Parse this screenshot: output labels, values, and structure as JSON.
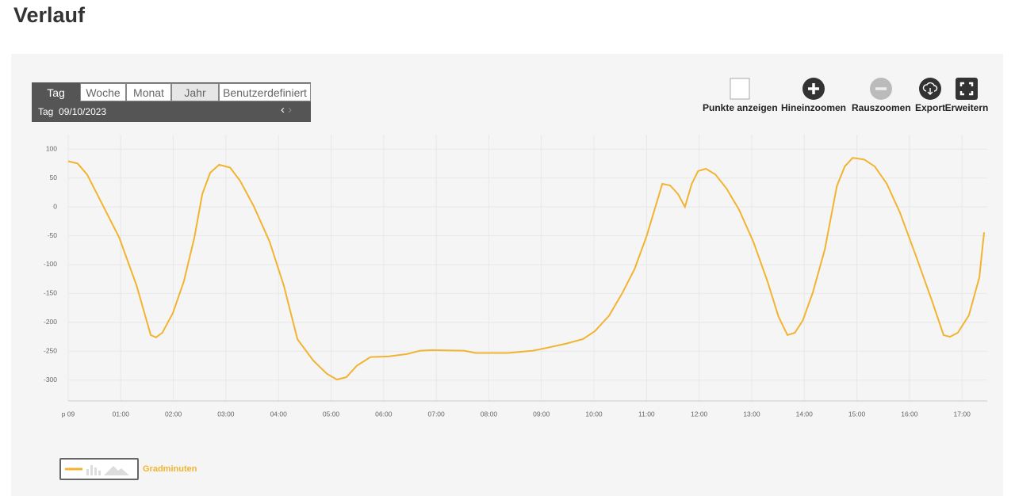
{
  "header": {
    "title": "Verlauf"
  },
  "tabs": {
    "items": [
      "Tag",
      "Woche",
      "Monat",
      "Jahr",
      "Benutzerdefiniert"
    ],
    "active": 0,
    "dimmed": 3
  },
  "period": {
    "label": "Tag",
    "date": "09/10/2023"
  },
  "toolbar": [
    "Punkte anzeigen",
    "Hineinzoomen",
    "Rauszoomen",
    "Export",
    "Erweitern"
  ],
  "chart_data": {
    "type": "line",
    "grid": true,
    "x": [
      0,
      0.18,
      0.36,
      0.59,
      0.97,
      1.3,
      1.57,
      1.67,
      1.79,
      1.99,
      2.2,
      2.4,
      2.55,
      2.7,
      2.87,
      3.08,
      3.27,
      3.53,
      3.83,
      4.1,
      4.36,
      4.66,
      4.92,
      5.11,
      5.29,
      5.49,
      5.75,
      6.09,
      6.43,
      6.7,
      6.92,
      7.53,
      7.75,
      8.36,
      8.84,
      9.11,
      9.46,
      9.79,
      10.02,
      10.29,
      10.54,
      10.77,
      11,
      11.3,
      11.45,
      11.6,
      11.73,
      11.86,
      11.98,
      12.13,
      12.31,
      12.52,
      12.76,
      13.03,
      13.3,
      13.51,
      13.68,
      13.82,
      13.97,
      14.16,
      14.39,
      14.62,
      14.77,
      14.92,
      15.14,
      15.34,
      15.57,
      15.82,
      16.12,
      16.43,
      16.65,
      16.77,
      16.92,
      17.13,
      17.33,
      17.42
    ],
    "series": [
      {
        "name": "Gradminuten",
        "color": "#f2b430",
        "values": [
          79,
          75,
          56,
          15,
          -53,
          -136,
          -222,
          -226,
          -218,
          -184,
          -129,
          -53,
          22,
          59,
          73,
          68,
          45,
          1,
          -60,
          -136,
          -229,
          -266,
          -289,
          -299,
          -295,
          -275,
          -260,
          -259,
          -255,
          -249,
          -248,
          -249,
          -253,
          -253,
          -249,
          -244,
          -237,
          -229,
          -215,
          -188,
          -149,
          -108,
          -51,
          40,
          37,
          22,
          0,
          40,
          62,
          66,
          56,
          32,
          -5,
          -60,
          -129,
          -190,
          -222,
          -218,
          -197,
          -149,
          -74,
          36,
          70,
          85,
          82,
          70,
          40,
          -10,
          -84,
          -163,
          -222,
          -225,
          -218,
          -188,
          -122,
          -44
        ]
      }
    ],
    "xlim": [
      0,
      17.48
    ],
    "ylim": [
      -336,
      125
    ],
    "xticks": [
      {
        "value": 0,
        "label": "p 09"
      },
      {
        "value": 1,
        "label": "01:00"
      },
      {
        "value": 2,
        "label": "02:00"
      },
      {
        "value": 3,
        "label": "03:00"
      },
      {
        "value": 4,
        "label": "04:00"
      },
      {
        "value": 5,
        "label": "05:00"
      },
      {
        "value": 6,
        "label": "06:00"
      },
      {
        "value": 7,
        "label": "07:00"
      },
      {
        "value": 8,
        "label": "08:00"
      },
      {
        "value": 9,
        "label": "09:00"
      },
      {
        "value": 10,
        "label": "10:00"
      },
      {
        "value": 11,
        "label": "11:00"
      },
      {
        "value": 12,
        "label": "12:00"
      },
      {
        "value": 13,
        "label": "13:00"
      },
      {
        "value": 14,
        "label": "14:00"
      },
      {
        "value": 15,
        "label": "15:00"
      },
      {
        "value": 16,
        "label": "16:00"
      },
      {
        "value": 17,
        "label": "17:00"
      }
    ],
    "yticks": [
      100,
      50,
      0,
      -50,
      -100,
      -150,
      -200,
      -250,
      -300
    ]
  }
}
